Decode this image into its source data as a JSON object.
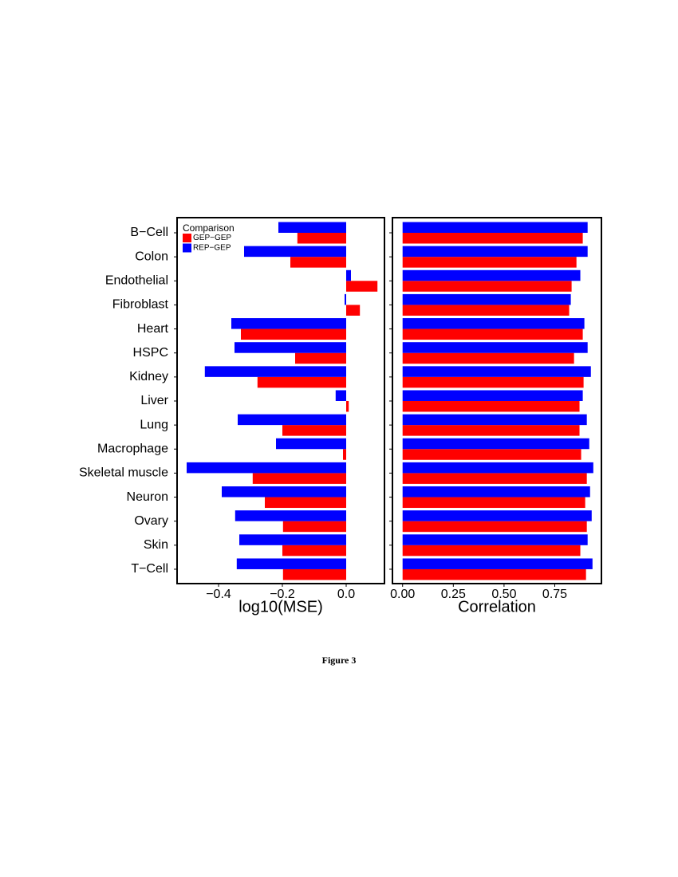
{
  "caption": "Figure 3",
  "chart_data": [
    {
      "type": "barh",
      "xlabel": "log10(MSE)",
      "legend_title": "Comparison",
      "legend": "top-left",
      "categories": [
        "B−Cell",
        "Colon",
        "Endothelial",
        "Fibroblast",
        "Heart",
        "HSPC",
        "Kidney",
        "Liver",
        "Lung",
        "Macrophage",
        "Skeletal muscle",
        "Neuron",
        "Ovary",
        "Skin",
        "T−Cell"
      ],
      "series": [
        {
          "name": "GEP−GEP",
          "color": "#ff0000",
          "values": [
            -0.153,
            -0.175,
            0.098,
            0.043,
            -0.33,
            -0.16,
            -0.278,
            0.008,
            -0.2,
            -0.01,
            -0.293,
            -0.255,
            -0.198,
            -0.2,
            -0.198
          ]
        },
        {
          "name": "REP−GEP",
          "color": "#0000ff",
          "values": [
            -0.2125,
            -0.32,
            0.015,
            -0.005,
            -0.36,
            -0.35,
            -0.443,
            -0.033,
            -0.34,
            -0.22,
            -0.5,
            -0.39,
            -0.348,
            -0.335,
            -0.343
          ]
        }
      ],
      "xlim": [
        -0.53,
        0.12
      ],
      "xticks": [
        {
          "value": -0.4,
          "label": "−0.4"
        },
        {
          "value": -0.2,
          "label": "−0.2"
        },
        {
          "value": 0,
          "label": "0.0"
        }
      ]
    },
    {
      "type": "barh",
      "xlabel": "Correlation",
      "series": [
        {
          "color": "#ff0000",
          "values": [
            0.888,
            0.857,
            0.833,
            0.821,
            0.888,
            0.845,
            0.892,
            0.872,
            0.872,
            0.88,
            0.908,
            0.9,
            0.908,
            0.876,
            0.904
          ]
        },
        {
          "color": "#0000ff",
          "values": [
            0.912,
            0.912,
            0.876,
            0.829,
            0.896,
            0.912,
            0.928,
            0.888,
            0.908,
            0.92,
            0.94,
            0.924,
            0.932,
            0.912,
            0.936
          ]
        }
      ],
      "xlim": [
        -0.05,
        0.98
      ],
      "xticks": [
        {
          "value": 0,
          "label": "0.00"
        },
        {
          "value": 0.25,
          "label": "0.25"
        },
        {
          "value": 0.5,
          "label": "0.50"
        },
        {
          "value": 0.75,
          "label": "0.75"
        }
      ]
    }
  ]
}
